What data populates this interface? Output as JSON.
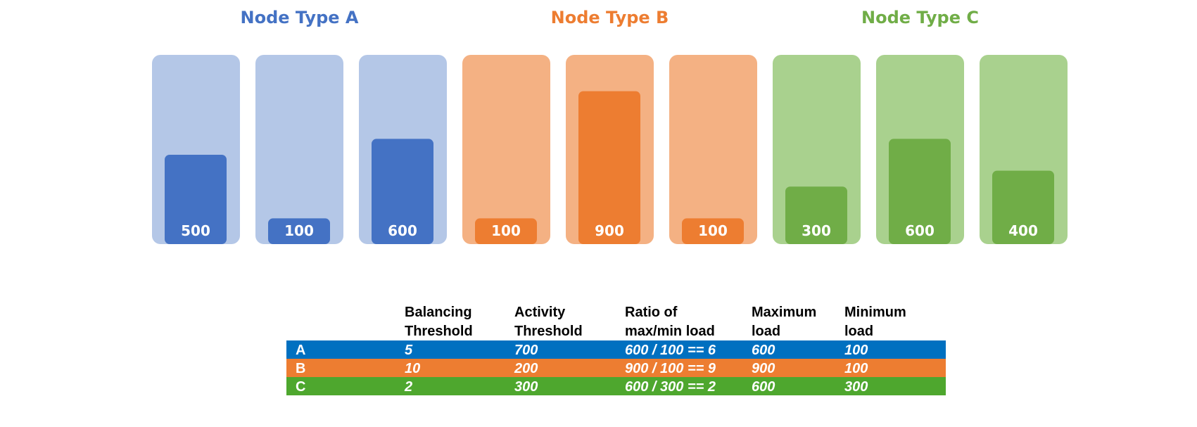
{
  "groups": [
    {
      "title": "Node Type A",
      "nodes": [
        500,
        100,
        600
      ]
    },
    {
      "title": "Node Type B",
      "nodes": [
        100,
        900,
        100
      ]
    },
    {
      "title": "Node Type C",
      "nodes": [
        300,
        600,
        400
      ]
    }
  ],
  "table": {
    "headers": [
      "Balancing Threshold",
      "Activity Threshold",
      "Ratio of max/min load",
      "Maximum load",
      "Minimum load"
    ],
    "rows": [
      [
        "A",
        5,
        700,
        "600 / 100 == 6",
        600,
        100
      ],
      [
        "B",
        10,
        200,
        "900 / 100 == 9",
        900,
        100
      ],
      [
        "C",
        2,
        300,
        "600 / 300 == 2",
        600,
        300
      ]
    ]
  }
}
